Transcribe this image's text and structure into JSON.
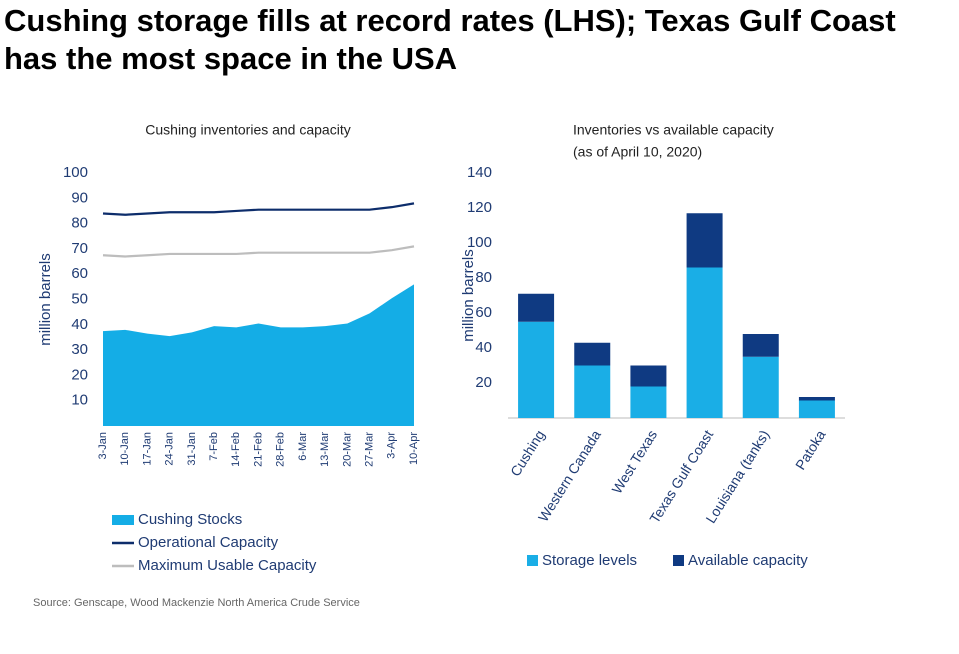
{
  "title": "Cushing storage fills at record rates (LHS); Texas Gulf Coast has the most space in the USA",
  "source": "Source: Genscape, Wood Mackenzie North America Crude Service",
  "chart_data": [
    {
      "type": "line",
      "title": "Cushing inventories and capacity",
      "y_label": "million barrels",
      "categories": [
        "3-Jan",
        "10-Jan",
        "17-Jan",
        "24-Jan",
        "31-Jan",
        "7-Feb",
        "14-Feb",
        "21-Feb",
        "28-Feb",
        "6-Mar",
        "13-Mar",
        "20-Mar",
        "27-Mar",
        "3-Apr",
        "10-Apr"
      ],
      "series": [
        {
          "name": "Cushing Stocks",
          "type": "area",
          "color": "#14ade6",
          "values": [
            37.5,
            38,
            36.5,
            35.5,
            37,
            39.5,
            39,
            40.5,
            39,
            39,
            39.5,
            40.5,
            44.5,
            50.5,
            56
          ]
        },
        {
          "name": "Operational Capacity",
          "type": "line",
          "color": "#0d2d6b",
          "values": [
            84,
            83.5,
            84,
            84.5,
            84.5,
            84.5,
            85,
            85.5,
            85.5,
            85.5,
            85.5,
            85.5,
            85.5,
            86.5,
            88
          ]
        },
        {
          "name": "Maximum Usable Capacity",
          "type": "line",
          "color": "#bdbdbd",
          "values": [
            67.5,
            67,
            67.5,
            68,
            68,
            68,
            68,
            68.5,
            68.5,
            68.5,
            68.5,
            68.5,
            68.5,
            69.5,
            71
          ]
        }
      ],
      "ylim": [
        0,
        100
      ],
      "yticks": [
        10,
        20,
        30,
        40,
        50,
        60,
        70,
        80,
        90,
        100
      ]
    },
    {
      "type": "stacked_bar",
      "title": "Inventories vs available capacity",
      "subtitle": "(as of April 10, 2020)",
      "y_label": "million barrels",
      "categories": [
        "Cushing",
        "Western Canada",
        "West Texas",
        "Texas Gulf Coast",
        "Louisiana (tanks)",
        "Patoka"
      ],
      "series": [
        {
          "name": "Storage levels",
          "color": "#1aaee6",
          "values": [
            55,
            30,
            18,
            86,
            35,
            10
          ]
        },
        {
          "name": "Available capacity",
          "color": "#0f3a82",
          "values": [
            16,
            13,
            12,
            31,
            13,
            2
          ]
        }
      ],
      "ylim": [
        0,
        140
      ],
      "yticks": [
        20,
        40,
        60,
        80,
        100,
        120,
        140
      ]
    }
  ]
}
